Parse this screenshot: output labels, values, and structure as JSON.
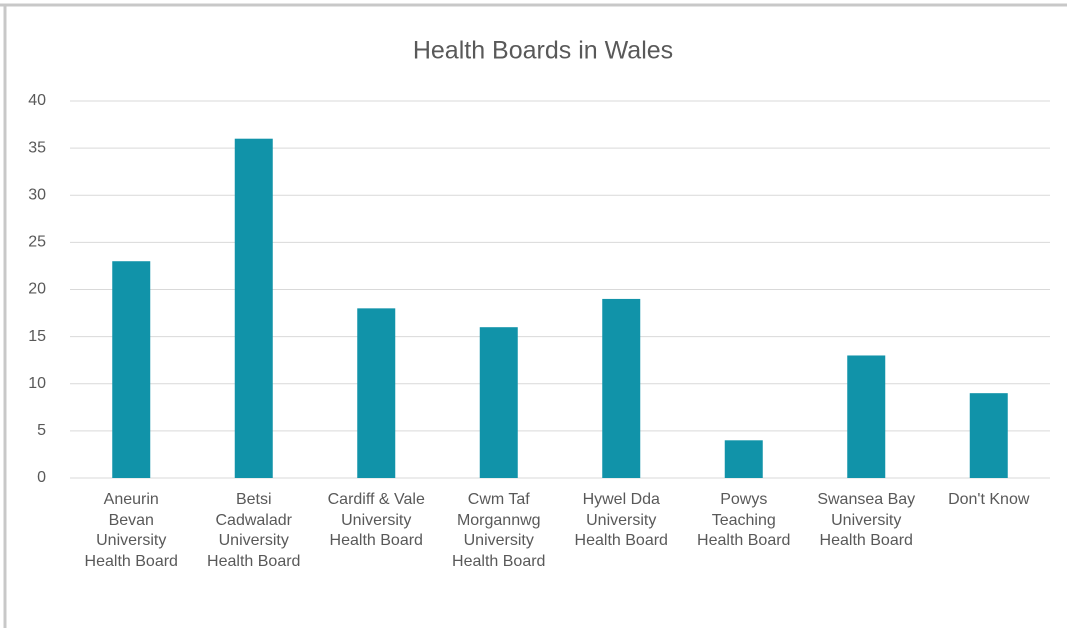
{
  "chart_data": {
    "type": "bar",
    "title": "Health Boards in Wales",
    "categories": [
      "Aneurin Bevan University Health Board",
      "Betsi Cadwaladr University Health Board",
      "Cardiff & Vale University Health Board",
      "Cwm Taf Morgannwg University Health Board",
      "Hywel Dda University Health Board",
      "Powys Teaching Health Board",
      "Swansea Bay University Health Board",
      "Don't Know"
    ],
    "values": [
      23,
      36,
      18,
      16,
      19,
      4,
      13,
      9
    ],
    "color": "#1193a9",
    "ylim": [
      0,
      40
    ],
    "yticks": [
      0,
      5,
      10,
      15,
      20,
      25,
      30,
      35,
      40
    ],
    "grid": true
  }
}
